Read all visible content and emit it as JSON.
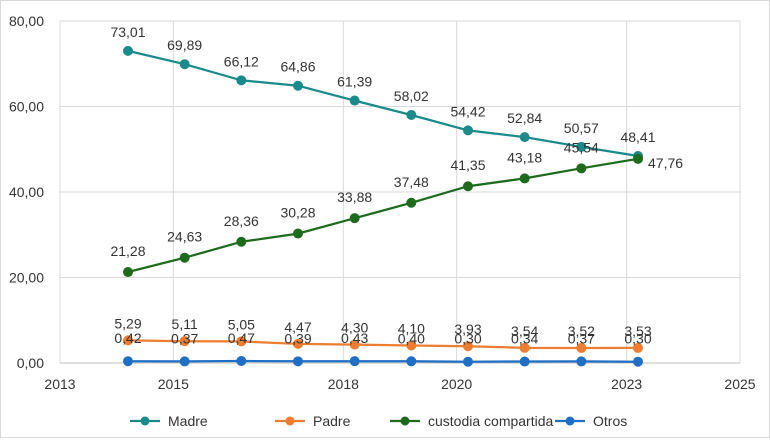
{
  "chart_data": {
    "type": "line",
    "title": "",
    "xlabel": "",
    "ylabel": "",
    "xlim": [
      2013,
      2025
    ],
    "ylim": [
      0,
      80
    ],
    "x_ticks": [
      "2013",
      "2015",
      "2018",
      "2020",
      "2023",
      "2025"
    ],
    "y_ticks": [
      "0,00",
      "20,00",
      "40,00",
      "60,00",
      "80,00"
    ],
    "grid": "vertical and horizontal major gridlines",
    "legend_position": "bottom",
    "x": [
      2014.2,
      2015.2,
      2016.2,
      2017.2,
      2018.2,
      2019.2,
      2020.2,
      2021.2,
      2022.2,
      2023.2
    ],
    "series": [
      {
        "name": "Madre",
        "color": "#1B8A8A",
        "values": [
          73.01,
          69.89,
          66.12,
          64.86,
          61.39,
          58.02,
          54.42,
          52.84,
          50.57,
          48.41
        ],
        "labels": [
          "73,01",
          "69,89",
          "66,12",
          "64,86",
          "61,39",
          "58,02",
          "54,42",
          "52,84",
          "50,57",
          "48,41"
        ]
      },
      {
        "name": "Padre",
        "color": "#ED7D31",
        "values": [
          5.29,
          5.11,
          5.05,
          4.47,
          4.3,
          4.1,
          3.93,
          3.54,
          3.52,
          3.53
        ],
        "labels": [
          "5,29",
          "5,11",
          "5,05",
          "4,47",
          "4,30",
          "4,10",
          "3,93",
          "3,54",
          "3,52",
          "3,53"
        ]
      },
      {
        "name": "custodia compartida",
        "color": "#1E6B1E",
        "values": [
          21.28,
          24.63,
          28.36,
          30.28,
          33.88,
          37.48,
          41.35,
          43.18,
          45.54,
          47.76
        ],
        "labels": [
          "21,28",
          "24,63",
          "28,36",
          "30,28",
          "33,88",
          "37,48",
          "41,35",
          "43,18",
          "45,54",
          "47,76"
        ]
      },
      {
        "name": "Otros",
        "color": "#1F6FC4",
        "values": [
          0.42,
          0.37,
          0.47,
          0.39,
          0.43,
          0.4,
          0.3,
          0.34,
          0.37,
          0.3
        ],
        "labels": [
          "0,42",
          "0,37",
          "0,47",
          "0,39",
          "0,43",
          "0,40",
          "0,30",
          "0,34",
          "0,37",
          "0,30"
        ]
      }
    ]
  }
}
